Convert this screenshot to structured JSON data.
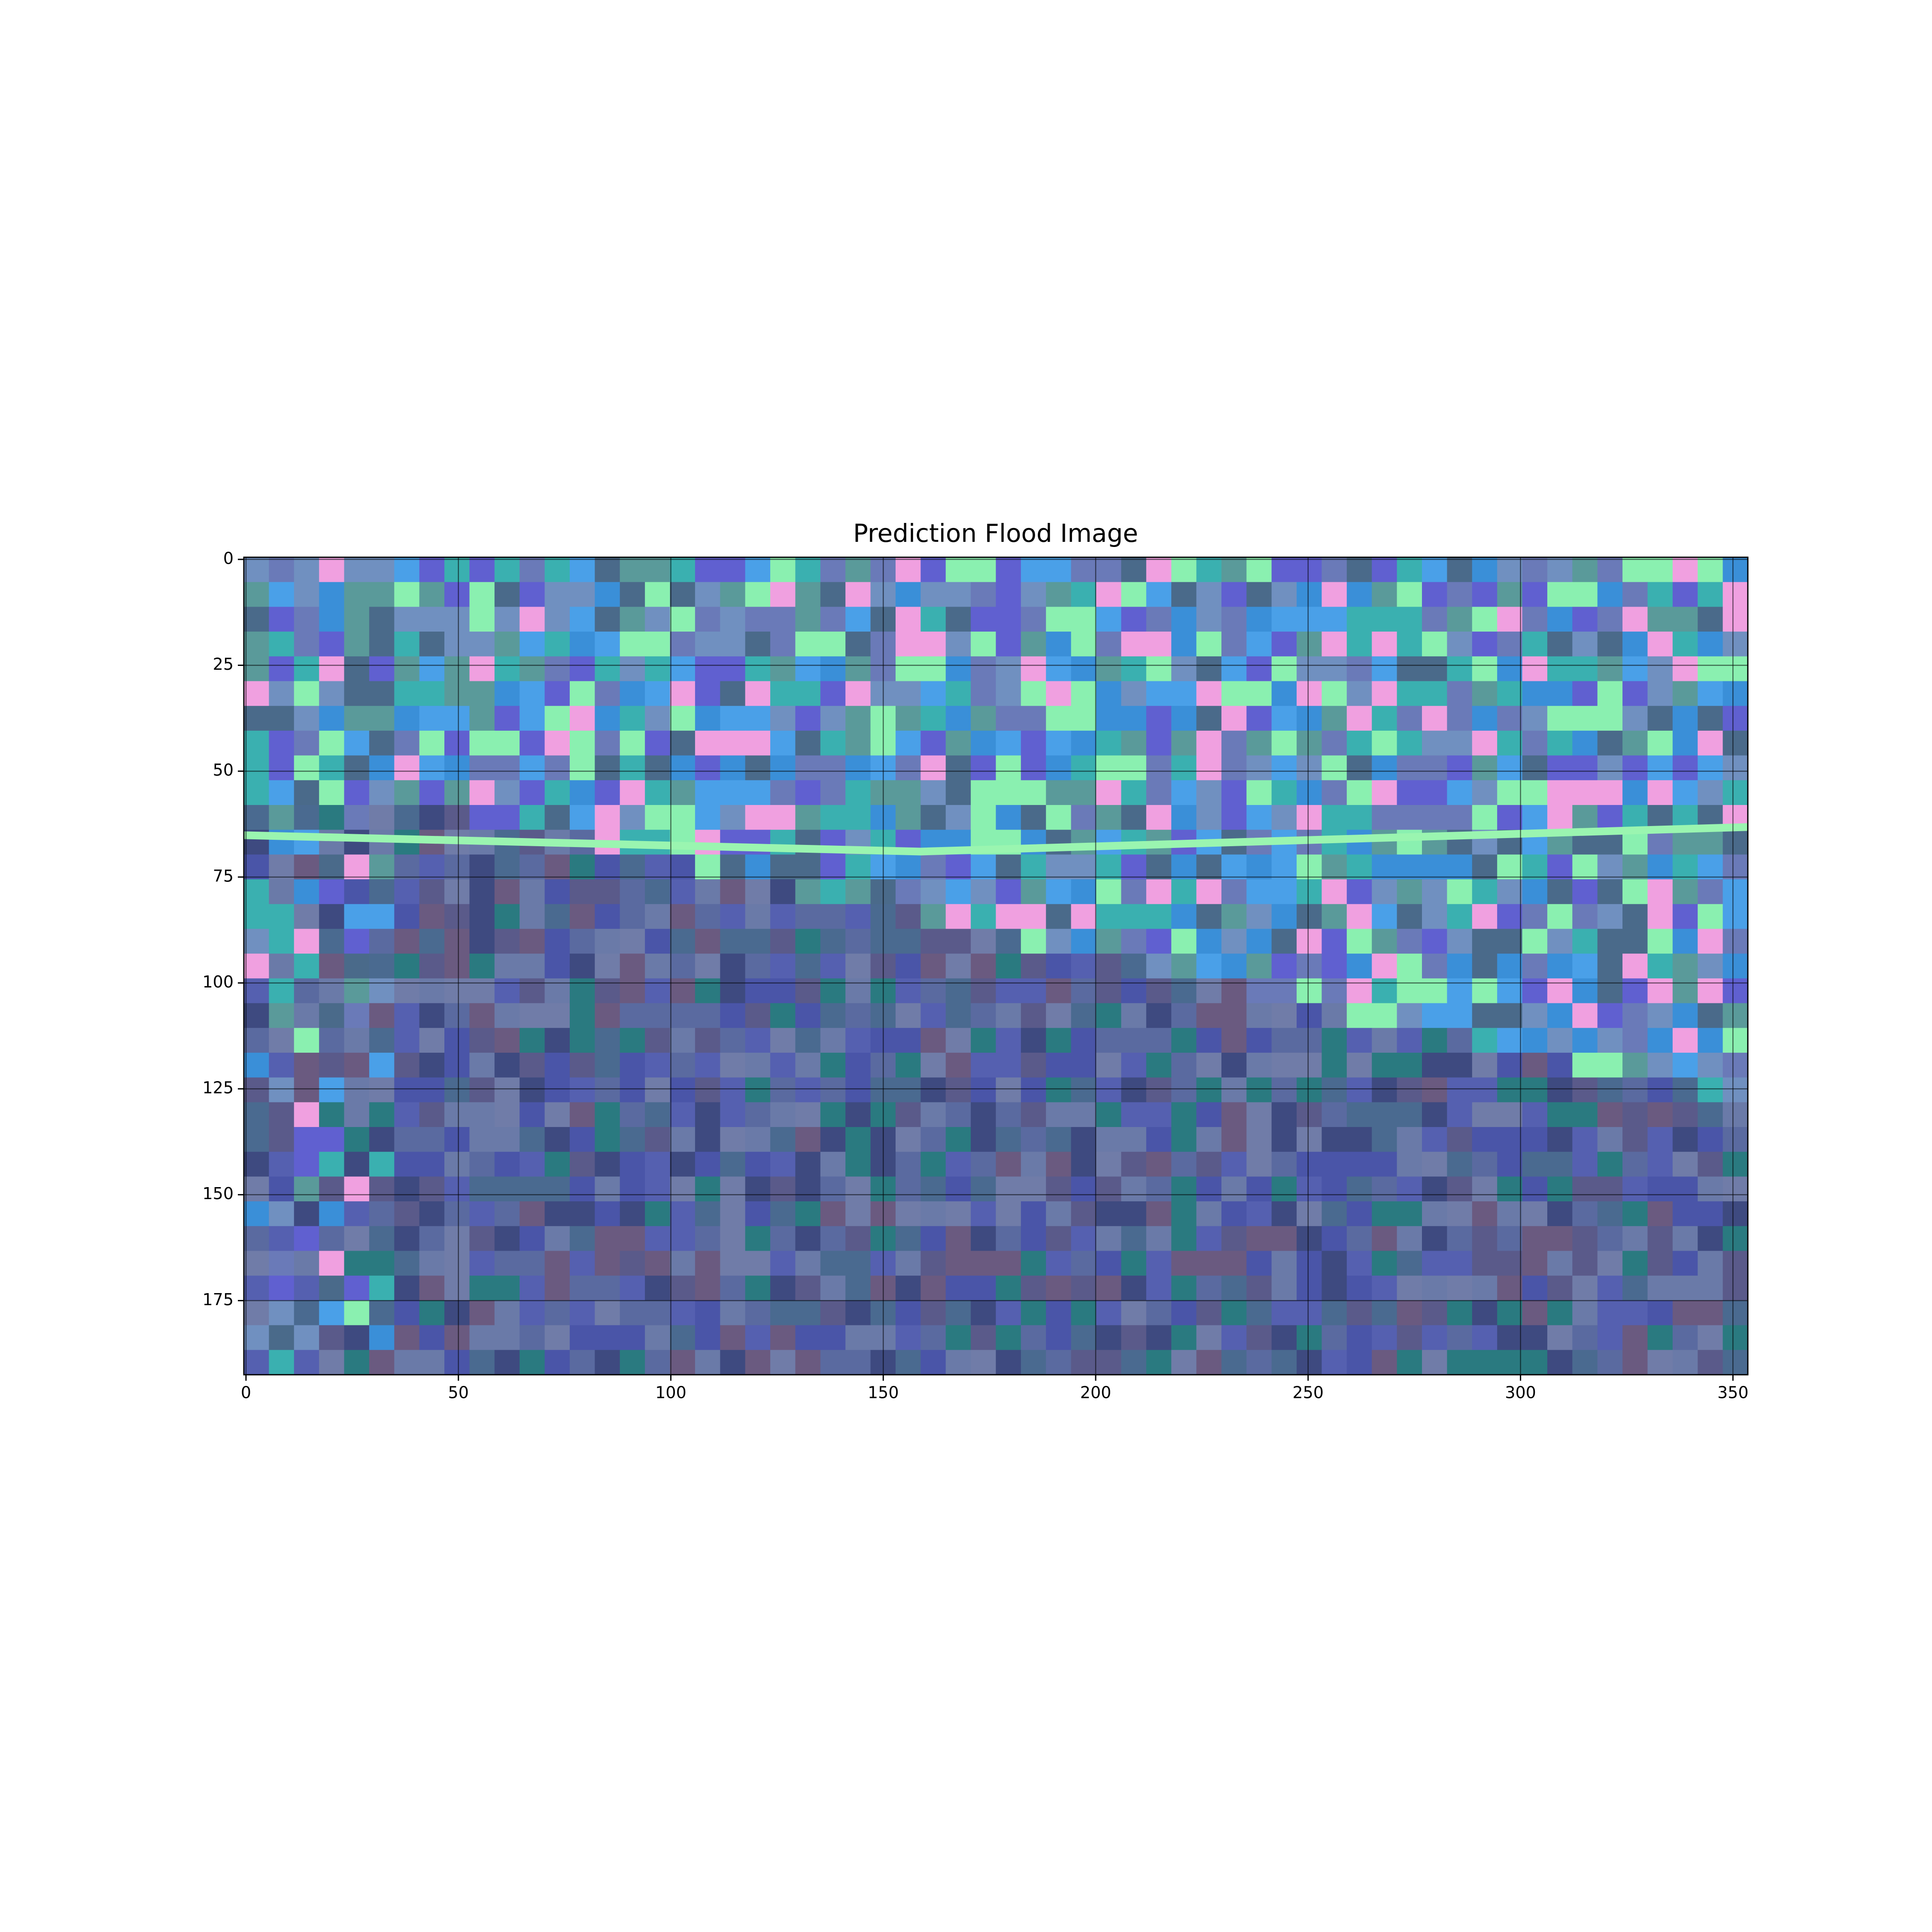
{
  "chart_data": {
    "type": "image",
    "title": "Prediction Flood Image",
    "xlim": [
      -0.5,
      353.5
    ],
    "ylim": [
      192.5,
      -0.5
    ],
    "xticks": [
      0,
      50,
      100,
      150,
      200,
      250,
      300,
      350
    ],
    "yticks": [
      0,
      25,
      50,
      75,
      100,
      125,
      150,
      175
    ],
    "grid": true
  }
}
